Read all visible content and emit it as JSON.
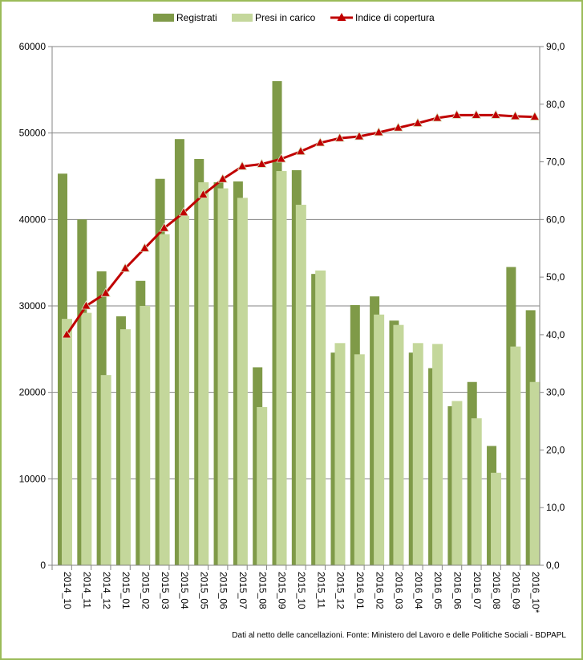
{
  "chart_data": {
    "type": "bar",
    "categories": [
      "2014_10",
      "2014_11",
      "2014_12",
      "2015_01",
      "2015_02",
      "2015_03",
      "2015_04",
      "2015_05",
      "2015_06",
      "2015_07",
      "2015_08",
      "2015_09",
      "2015_10",
      "2015_11",
      "2015_12",
      "2016_01",
      "2016_02",
      "2016_03",
      "2016_04",
      "2016_05",
      "2016_06",
      "2016_07",
      "2016_08",
      "2016_09",
      "2016_10*"
    ],
    "series": [
      {
        "name": "Registrati",
        "type": "bar",
        "axis": "left",
        "color": "#7f9a48",
        "values": [
          45300,
          40000,
          34000,
          28800,
          32900,
          44700,
          49300,
          47000,
          44300,
          44400,
          22900,
          56000,
          45700,
          33700,
          24600,
          30100,
          31100,
          28300,
          24600,
          22800,
          18400,
          21200,
          13800,
          34500,
          29500
        ]
      },
      {
        "name": "Presi in carico",
        "type": "bar",
        "axis": "left",
        "color": "#c4d79b",
        "values": [
          28500,
          29200,
          22000,
          27300,
          30000,
          38300,
          40400,
          44300,
          43600,
          42500,
          18300,
          45600,
          41700,
          34100,
          25700,
          24400,
          29000,
          27800,
          25700,
          25600,
          19000,
          17000,
          10700,
          25300,
          21200
        ]
      },
      {
        "name": "Indice di copertura",
        "type": "line",
        "axis": "right",
        "color": "#c00000",
        "marker": "triangle",
        "values": [
          40.0,
          45.0,
          47.2,
          51.5,
          55.0,
          58.5,
          61.2,
          64.3,
          67.0,
          69.2,
          69.6,
          70.5,
          71.8,
          73.3,
          74.1,
          74.4,
          75.1,
          75.9,
          76.7,
          77.6,
          78.1,
          78.1,
          78.1,
          77.9,
          77.8
        ]
      }
    ],
    "ylim": [
      0,
      60000
    ],
    "yticks": [
      "0",
      "10000",
      "20000",
      "30000",
      "40000",
      "50000",
      "60000"
    ],
    "y2lim": [
      0,
      90
    ],
    "y2ticks": [
      "0,0",
      "10,0",
      "20,0",
      "30,0",
      "40,0",
      "50,0",
      "60,0",
      "70,0",
      "80,0",
      "90,0"
    ],
    "grid": true,
    "legend_placement": "top",
    "note": "Dati al netto delle cancellazioni. Fonte: Ministero del Lavoro e delle Politiche Sociali - BDPAPL"
  }
}
